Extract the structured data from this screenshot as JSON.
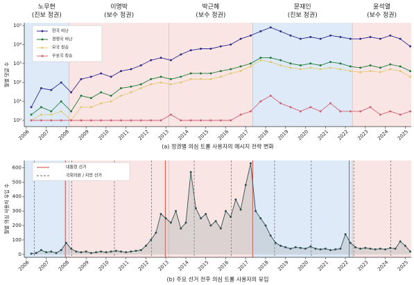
{
  "chart_data": [
    {
      "type": "line",
      "title": "(a) 정권별 의심 트롤 사용자의 메시지 전략 변화",
      "y_label": "월별 댓글 수",
      "log_y": true,
      "legend": "upper left",
      "eras": [
        {
          "name": "노무현",
          "party": "(진보 정권)",
          "from": 2005.9,
          "to": 2008.15,
          "color": "#dfeaf8"
        },
        {
          "name": "이명박",
          "party": "(보수 정권)",
          "from": 2008.15,
          "to": 2013.15,
          "color": "#fae5e5"
        },
        {
          "name": "박근혜",
          "party": "(보수 정권)",
          "from": 2013.15,
          "to": 2017.35,
          "color": "#fae5e5"
        },
        {
          "name": "문재인",
          "party": "(진보 정권)",
          "from": 2017.35,
          "to": 2022.35,
          "color": "#dfeaf8"
        },
        {
          "name": "윤석열",
          "party": "(보수 정권)",
          "from": 2022.35,
          "to": 2025.3,
          "color": "#fae5e5"
        }
      ],
      "x": [
        2006.25,
        2006.75,
        2007.25,
        2007.75,
        2008.25,
        2008.75,
        2009.25,
        2009.75,
        2010.25,
        2010.75,
        2011.25,
        2011.75,
        2012.25,
        2012.75,
        2013.25,
        2013.75,
        2014.25,
        2014.75,
        2015.25,
        2015.75,
        2016.25,
        2016.75,
        2017.25,
        2017.75,
        2018.25,
        2018.75,
        2019.25,
        2019.75,
        2020.25,
        2020.75,
        2021.25,
        2021.75,
        2022.25,
        2022.75,
        2023.25,
        2023.75,
        2024.25,
        2024.75,
        2025.25
      ],
      "series": [
        {
          "name": "한국 비난",
          "color": "#2e2a8c",
          "values": [
            5,
            50,
            40,
            100,
            30,
            150,
            200,
            300,
            200,
            400,
            500,
            800,
            1500,
            2000,
            1500,
            3000,
            5000,
            6000,
            6000,
            8000,
            10000,
            20000,
            30000,
            50000,
            80000,
            50000,
            30000,
            20000,
            25000,
            20000,
            30000,
            25000,
            20000,
            20000,
            25000,
            20000,
            30000,
            20000,
            8000
          ]
        },
        {
          "name": "경쟁국 비난",
          "color": "#1e7a3a",
          "values": [
            2,
            5,
            3,
            10,
            3,
            20,
            15,
            30,
            20,
            50,
            60,
            80,
            150,
            200,
            150,
            200,
            300,
            300,
            300,
            400,
            500,
            700,
            1000,
            2000,
            2000,
            1500,
            1000,
            800,
            1000,
            800,
            1200,
            1000,
            700,
            600,
            800,
            600,
            900,
            700,
            400
          ]
        },
        {
          "name": "모국 칭송",
          "color": "#e0c870",
          "values": [
            1,
            2,
            2,
            3,
            1,
            5,
            5,
            8,
            10,
            20,
            30,
            50,
            80,
            100,
            80,
            100,
            150,
            150,
            150,
            200,
            300,
            400,
            700,
            1500,
            1200,
            800,
            600,
            500,
            600,
            500,
            600,
            500,
            400,
            350,
            400,
            350,
            500,
            400,
            200
          ]
        },
        {
          "name": "우호국 칭송",
          "color": "#d06070",
          "values": [
            1,
            1,
            1,
            1,
            1,
            1,
            1,
            1,
            1,
            1,
            1,
            1,
            1,
            1,
            2,
            1,
            1,
            1,
            1,
            1,
            1,
            2,
            3,
            10,
            20,
            8,
            5,
            3,
            5,
            3,
            8,
            3,
            3,
            3,
            5,
            2,
            3,
            2,
            3
          ]
        }
      ],
      "xlim": [
        2005.9,
        2025.3
      ],
      "xticks": [
        2006,
        2007,
        2008,
        2009,
        2010,
        2011,
        2012,
        2013,
        2014,
        2015,
        2016,
        2017,
        2018,
        2019,
        2020,
        2021,
        2022,
        2023,
        2024,
        2025
      ],
      "ylim": [
        0.47,
        140000
      ],
      "yticks": [
        {
          "value": 1,
          "label": "10⁰"
        },
        {
          "value": 10,
          "label": "10¹"
        },
        {
          "value": 100,
          "label": "10²"
        },
        {
          "value": 1000,
          "label": "10³"
        },
        {
          "value": 10000,
          "label": "10⁴"
        },
        {
          "value": 100000,
          "label": "10⁵"
        }
      ]
    },
    {
      "type": "line",
      "title": "(b) 주요 선거 전후 의심 트롤 사용자의 유입",
      "y_label": "월별 의심 사용자 유입 수",
      "legend": "upper left",
      "elections": [
        {
          "name": "대통령 선거",
          "color": "#d9443a",
          "dashed": false,
          "x": [
            2007.96,
            2012.97,
            2017.35,
            2022.19
          ]
        },
        {
          "name": "국회의원 / 지방 선거",
          "color": "#666666",
          "dashed": true,
          "x": [
            2006.4,
            2008.28,
            2010.42,
            2012.28,
            2014.42,
            2016.28,
            2018.45,
            2020.29,
            2022.42,
            2024.28
          ]
        }
      ],
      "x": [
        2006.25,
        2006.5,
        2006.75,
        2007,
        2007.25,
        2007.5,
        2007.75,
        2008,
        2008.25,
        2008.5,
        2008.75,
        2009,
        2009.25,
        2009.5,
        2009.75,
        2010,
        2010.25,
        2010.5,
        2010.75,
        2011,
        2011.25,
        2011.5,
        2011.75,
        2012,
        2012.25,
        2012.5,
        2012.75,
        2013,
        2013.25,
        2013.5,
        2013.75,
        2014,
        2014.25,
        2014.5,
        2014.75,
        2015,
        2015.25,
        2015.5,
        2015.75,
        2016,
        2016.25,
        2016.5,
        2016.75,
        2017,
        2017.25,
        2017.5,
        2017.75,
        2018,
        2018.25,
        2018.5,
        2018.75,
        2019,
        2019.25,
        2019.5,
        2019.75,
        2020,
        2020.25,
        2020.5,
        2020.75,
        2021,
        2021.25,
        2021.5,
        2021.75,
        2022,
        2022.25,
        2022.5,
        2022.75,
        2023,
        2023.25,
        2023.5,
        2023.75,
        2024,
        2024.25,
        2024.5,
        2024.75,
        2025,
        2025.25
      ],
      "series": [
        {
          "color": "#2f4f4f",
          "values": [
            5,
            10,
            30,
            15,
            20,
            10,
            30,
            80,
            40,
            20,
            15,
            20,
            10,
            15,
            20,
            15,
            20,
            25,
            20,
            15,
            20,
            25,
            30,
            60,
            100,
            150,
            280,
            250,
            220,
            300,
            180,
            220,
            570,
            320,
            250,
            280,
            200,
            230,
            180,
            300,
            260,
            380,
            310,
            480,
            630,
            300,
            250,
            200,
            130,
            80,
            60,
            50,
            40,
            50,
            45,
            40,
            55,
            40,
            35,
            40,
            30,
            35,
            40,
            140,
            80,
            50,
            40,
            45,
            40,
            35,
            40,
            35,
            45,
            40,
            90,
            60,
            20
          ]
        }
      ],
      "xlim": [
        2005.9,
        2025.3
      ],
      "xticks": [
        2006,
        2007,
        2008,
        2009,
        2010,
        2011,
        2012,
        2013,
        2014,
        2015,
        2016,
        2017,
        2018,
        2019,
        2020,
        2021,
        2022,
        2023,
        2024,
        2025
      ],
      "ylim": [
        -20,
        650
      ],
      "yticks": [
        0,
        100,
        200,
        300,
        400,
        500,
        600
      ]
    }
  ]
}
